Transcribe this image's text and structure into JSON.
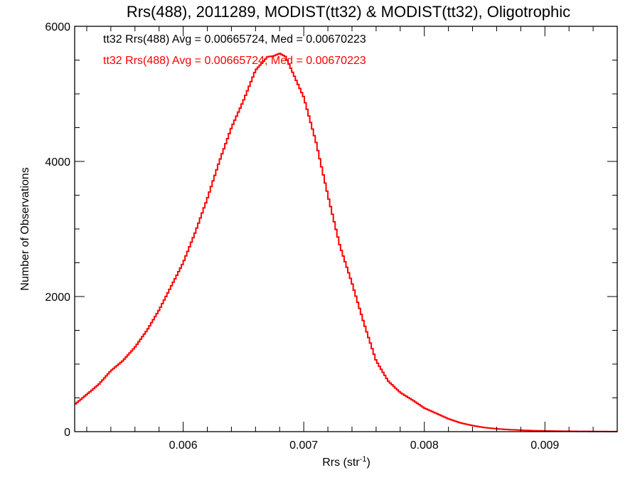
{
  "chart_data": {
    "type": "line",
    "style": "step-histogram",
    "title": "Rrs(488), 2011289, MODIST(tt32) & MODIST(tt32), Oligotrophic",
    "xlabel_main": "Rrs (str",
    "xlabel_sup": "-1",
    "xlabel_close": ")",
    "ylabel": "Number of Observations",
    "xlim": [
      0.0051,
      0.0096
    ],
    "ylim": [
      0,
      6000
    ],
    "x_ticks": [
      0.006,
      0.007,
      0.008,
      0.009
    ],
    "x_tick_labels": [
      "0.006",
      "0.007",
      "0.008",
      "0.009"
    ],
    "y_ticks": [
      0,
      2000,
      4000,
      6000
    ],
    "y_tick_labels": [
      "0",
      "2000",
      "4000",
      "6000"
    ],
    "legend": [
      {
        "text": "tt32 Rrs(488) Avg = 0.00665724, Med = 0.00670223",
        "color": "#000000"
      },
      {
        "text": "tt32 Rrs(488) Avg = 0.00665724, Med = 0.00670223",
        "color": "#ff0000"
      }
    ],
    "series": [
      {
        "color": "#ff0000",
        "x": [
          0.0051,
          0.0052,
          0.0053,
          0.0054,
          0.0055,
          0.0056,
          0.0057,
          0.0058,
          0.0059,
          0.006,
          0.0061,
          0.0062,
          0.0063,
          0.0064,
          0.0065,
          0.0066,
          0.00665,
          0.0067,
          0.00675,
          0.0068,
          0.00685,
          0.0069,
          0.007,
          0.0071,
          0.0072,
          0.0073,
          0.0074,
          0.0075,
          0.0076,
          0.0077,
          0.0078,
          0.0079,
          0.008,
          0.0081,
          0.0082,
          0.0083,
          0.0084,
          0.0085,
          0.0086,
          0.0087,
          0.0088,
          0.0089,
          0.009,
          0.0091,
          0.0092,
          0.0093,
          0.0094,
          0.0095,
          0.0096
        ],
        "y": [
          400,
          550,
          700,
          900,
          1050,
          1250,
          1500,
          1800,
          2150,
          2500,
          2950,
          3450,
          4000,
          4500,
          4900,
          5350,
          5450,
          5550,
          5560,
          5600,
          5550,
          5350,
          4950,
          4300,
          3500,
          2750,
          2200,
          1600,
          1050,
          750,
          580,
          470,
          350,
          270,
          190,
          130,
          90,
          60,
          42,
          30,
          22,
          15,
          11,
          8,
          6,
          4,
          3,
          2,
          1
        ]
      }
    ]
  }
}
